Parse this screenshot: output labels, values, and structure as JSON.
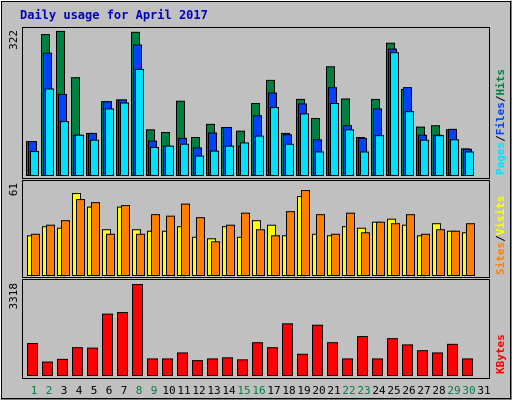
{
  "title": "Daily usage for April 2017",
  "colors": {
    "background": "#C0C0C0",
    "title": "#0000C0",
    "hits": "#008040",
    "files": "#0040FF",
    "pages": "#00E0FF",
    "visits": "#FFFF00",
    "sites": "#FF8000",
    "kbytes": "#FF0000",
    "weekday_label": "#000000",
    "weekend_label": "#008040"
  },
  "labels": {
    "hits": "Hits",
    "files": "Files",
    "pages": "Pages",
    "visits": "Visits",
    "sites": "Sites",
    "kbytes": "KBytes",
    "sep": "/"
  },
  "chart_data": [
    {
      "type": "bar",
      "name": "hits-files-pages",
      "ylim": [
        0,
        322
      ],
      "y_tick": "322",
      "categories": [
        "1",
        "2",
        "3",
        "4",
        "5",
        "6",
        "7",
        "8",
        "9",
        "10",
        "11",
        "12",
        "13",
        "14",
        "15",
        "16",
        "17",
        "18",
        "19",
        "20",
        "21",
        "22",
        "23",
        "24",
        "25",
        "26",
        "27",
        "28",
        "29",
        "30",
        "31"
      ],
      "series": [
        {
          "name": "Hits",
          "values": [
            77,
            313,
            320,
            218,
            95,
            165,
            169,
            318,
            103,
            97,
            166,
            86,
            115,
            108,
            100,
            161,
            212,
            95,
            170,
            128,
            242,
            171,
            86,
            170,
            294,
            192,
            109,
            112,
            103,
            61,
            0
          ]
        },
        {
          "name": "Files",
          "values": [
            77,
            272,
            181,
            91,
            95,
            165,
            169,
            290,
            78,
            67,
            84,
            63,
            96,
            108,
            67,
            134,
            184,
            92,
            160,
            81,
            196,
            112,
            84,
            149,
            281,
            196,
            91,
            91,
            104,
            60,
            0
          ]
        },
        {
          "name": "Pages",
          "values": [
            55,
            193,
            121,
            91,
            80,
            149,
            162,
            236,
            64,
            67,
            71,
            45,
            56,
            67,
            74,
            89,
            152,
            71,
            138,
            54,
            161,
            103,
            54,
            90,
            273,
            143,
            80,
            90,
            81,
            54,
            0
          ]
        }
      ]
    },
    {
      "type": "bar",
      "name": "visits-sites",
      "ylim": [
        0,
        61
      ],
      "y_tick": "61",
      "categories": [
        "1",
        "2",
        "3",
        "4",
        "5",
        "6",
        "7",
        "8",
        "9",
        "10",
        "11",
        "12",
        "13",
        "14",
        "15",
        "16",
        "17",
        "18",
        "19",
        "20",
        "21",
        "22",
        "23",
        "24",
        "25",
        "26",
        "27",
        "28",
        "29",
        "30",
        "31"
      ],
      "series": [
        {
          "name": "Visits",
          "values": [
            27,
            33,
            32,
            55,
            46,
            31,
            46,
            31,
            30,
            30,
            33,
            26,
            25,
            33,
            26,
            37,
            34,
            27,
            53,
            28,
            27,
            33,
            32,
            36,
            38,
            34,
            27,
            35,
            30,
            29,
            0
          ]
        },
        {
          "name": "Sites",
          "values": [
            28,
            34,
            37,
            51,
            49,
            28,
            47,
            28,
            41,
            40,
            48,
            39,
            23,
            34,
            42,
            31,
            27,
            43,
            57,
            41,
            28,
            42,
            29,
            36,
            35,
            41,
            28,
            31,
            30,
            35,
            0
          ]
        }
      ]
    },
    {
      "type": "bar",
      "name": "kbytes",
      "ylim": [
        0,
        3318
      ],
      "y_tick": "3318",
      "categories": [
        "1",
        "2",
        "3",
        "4",
        "5",
        "6",
        "7",
        "8",
        "9",
        "10",
        "11",
        "12",
        "13",
        "14",
        "15",
        "16",
        "17",
        "18",
        "19",
        "20",
        "21",
        "22",
        "23",
        "24",
        "25",
        "26",
        "27",
        "28",
        "29",
        "30",
        "31"
      ],
      "series": [
        {
          "name": "KBytes",
          "values": [
            1190,
            521,
            618,
            1040,
            1024,
            2250,
            2306,
            3318,
            634,
            634,
            850,
            574,
            634,
            674,
            601,
            1220,
            1040,
            1900,
            802,
            1850,
            1220,
            634,
            1440,
            634,
            1366,
            1140,
            932,
            850,
            1160,
            634,
            0
          ]
        }
      ]
    }
  ]
}
